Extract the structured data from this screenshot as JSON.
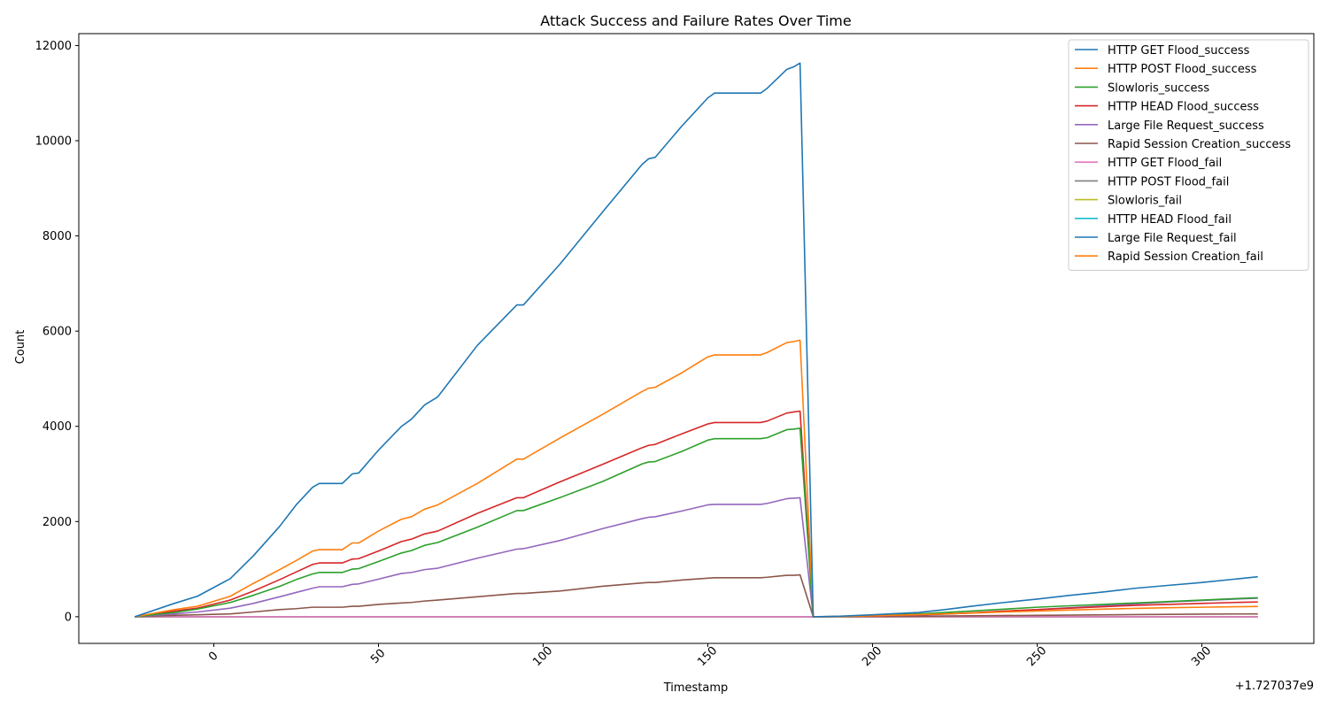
{
  "chart_data": {
    "type": "line",
    "title": "Attack Success and Failure Rates Over Time",
    "xlabel": "Timestamp",
    "ylabel": "Count",
    "x_offset_label": "+1.727037e9",
    "xlim": [
      -41,
      334
    ],
    "ylim": [
      -560,
      12250
    ],
    "xticks": [
      0,
      50,
      100,
      150,
      200,
      250,
      300
    ],
    "yticks": [
      0,
      2000,
      4000,
      6000,
      8000,
      10000,
      12000
    ],
    "legend_position": "top-right",
    "grid": false,
    "series": [
      {
        "name": "HTTP GET Flood_success",
        "color": "#1f77b4",
        "points": [
          [
            -24,
            0
          ],
          [
            -12,
            280
          ],
          [
            -5,
            430
          ],
          [
            5,
            800
          ],
          [
            12,
            1280
          ],
          [
            20,
            1900
          ],
          [
            25,
            2350
          ],
          [
            30,
            2720
          ],
          [
            32,
            2800
          ],
          [
            39,
            2800
          ],
          [
            42,
            3000
          ],
          [
            44,
            3020
          ],
          [
            50,
            3500
          ],
          [
            57,
            4000
          ],
          [
            60,
            4150
          ],
          [
            64,
            4450
          ],
          [
            68,
            4620
          ],
          [
            80,
            5700
          ],
          [
            92,
            6550
          ],
          [
            94,
            6550
          ],
          [
            105,
            7400
          ],
          [
            118,
            8500
          ],
          [
            130,
            9500
          ],
          [
            132,
            9620
          ],
          [
            134,
            9650
          ],
          [
            142,
            10300
          ],
          [
            150,
            10900
          ],
          [
            152,
            11000
          ],
          [
            166,
            11000
          ],
          [
            168,
            11100
          ],
          [
            174,
            11500
          ],
          [
            176,
            11550
          ],
          [
            178,
            11630
          ],
          [
            182,
            0
          ],
          [
            190,
            10
          ],
          [
            200,
            40
          ],
          [
            214,
            90
          ],
          [
            222,
            150
          ],
          [
            230,
            220
          ],
          [
            240,
            300
          ],
          [
            250,
            370
          ],
          [
            260,
            450
          ],
          [
            270,
            520
          ],
          [
            280,
            600
          ],
          [
            290,
            660
          ],
          [
            300,
            720
          ],
          [
            310,
            790
          ],
          [
            317,
            840
          ]
        ]
      },
      {
        "name": "HTTP POST Flood_success",
        "color": "#ff7f0e",
        "points": [
          [
            -24,
            0
          ],
          [
            -12,
            150
          ],
          [
            -5,
            220
          ],
          [
            5,
            430
          ],
          [
            12,
            700
          ],
          [
            20,
            990
          ],
          [
            25,
            1180
          ],
          [
            30,
            1380
          ],
          [
            32,
            1410
          ],
          [
            39,
            1410
          ],
          [
            42,
            1550
          ],
          [
            44,
            1550
          ],
          [
            50,
            1800
          ],
          [
            57,
            2050
          ],
          [
            60,
            2100
          ],
          [
            64,
            2260
          ],
          [
            68,
            2350
          ],
          [
            80,
            2800
          ],
          [
            92,
            3310
          ],
          [
            94,
            3310
          ],
          [
            105,
            3750
          ],
          [
            118,
            4250
          ],
          [
            130,
            4730
          ],
          [
            132,
            4800
          ],
          [
            134,
            4820
          ],
          [
            142,
            5120
          ],
          [
            150,
            5460
          ],
          [
            152,
            5500
          ],
          [
            166,
            5500
          ],
          [
            168,
            5550
          ],
          [
            174,
            5760
          ],
          [
            176,
            5780
          ],
          [
            178,
            5810
          ],
          [
            182,
            0
          ],
          [
            190,
            5
          ],
          [
            200,
            20
          ],
          [
            214,
            45
          ],
          [
            222,
            60
          ],
          [
            230,
            75
          ],
          [
            240,
            100
          ],
          [
            250,
            120
          ],
          [
            260,
            140
          ],
          [
            270,
            160
          ],
          [
            280,
            175
          ],
          [
            290,
            190
          ],
          [
            300,
            200
          ],
          [
            310,
            210
          ],
          [
            317,
            215
          ]
        ]
      },
      {
        "name": "Slowloris_success",
        "color": "#2ca02c",
        "points": [
          [
            -24,
            0
          ],
          [
            -12,
            90
          ],
          [
            -5,
            160
          ],
          [
            5,
            300
          ],
          [
            12,
            450
          ],
          [
            20,
            640
          ],
          [
            25,
            780
          ],
          [
            30,
            900
          ],
          [
            32,
            930
          ],
          [
            39,
            930
          ],
          [
            42,
            1000
          ],
          [
            44,
            1010
          ],
          [
            50,
            1160
          ],
          [
            57,
            1340
          ],
          [
            60,
            1390
          ],
          [
            64,
            1500
          ],
          [
            68,
            1560
          ],
          [
            80,
            1880
          ],
          [
            92,
            2230
          ],
          [
            94,
            2230
          ],
          [
            105,
            2500
          ],
          [
            118,
            2840
          ],
          [
            130,
            3210
          ],
          [
            132,
            3250
          ],
          [
            134,
            3260
          ],
          [
            142,
            3470
          ],
          [
            150,
            3710
          ],
          [
            152,
            3740
          ],
          [
            166,
            3740
          ],
          [
            168,
            3760
          ],
          [
            174,
            3930
          ],
          [
            176,
            3940
          ],
          [
            178,
            3960
          ],
          [
            182,
            0
          ],
          [
            190,
            5
          ],
          [
            200,
            25
          ],
          [
            214,
            60
          ],
          [
            222,
            90
          ],
          [
            230,
            120
          ],
          [
            240,
            160
          ],
          [
            250,
            200
          ],
          [
            260,
            230
          ],
          [
            270,
            260
          ],
          [
            280,
            290
          ],
          [
            290,
            320
          ],
          [
            300,
            350
          ],
          [
            310,
            380
          ],
          [
            317,
            400
          ]
        ]
      },
      {
        "name": "HTTP HEAD Flood_success",
        "color": "#d62728",
        "points": [
          [
            -24,
            0
          ],
          [
            -12,
            120
          ],
          [
            -5,
            180
          ],
          [
            5,
            350
          ],
          [
            12,
            540
          ],
          [
            20,
            780
          ],
          [
            25,
            940
          ],
          [
            30,
            1100
          ],
          [
            32,
            1130
          ],
          [
            39,
            1130
          ],
          [
            42,
            1210
          ],
          [
            44,
            1220
          ],
          [
            50,
            1380
          ],
          [
            57,
            1580
          ],
          [
            60,
            1630
          ],
          [
            64,
            1740
          ],
          [
            68,
            1800
          ],
          [
            80,
            2170
          ],
          [
            92,
            2500
          ],
          [
            94,
            2500
          ],
          [
            105,
            2830
          ],
          [
            118,
            3200
          ],
          [
            130,
            3550
          ],
          [
            132,
            3600
          ],
          [
            134,
            3620
          ],
          [
            142,
            3840
          ],
          [
            150,
            4050
          ],
          [
            152,
            4080
          ],
          [
            166,
            4080
          ],
          [
            168,
            4110
          ],
          [
            174,
            4280
          ],
          [
            176,
            4300
          ],
          [
            178,
            4320
          ],
          [
            182,
            0
          ],
          [
            190,
            3
          ],
          [
            200,
            15
          ],
          [
            214,
            40
          ],
          [
            222,
            60
          ],
          [
            230,
            80
          ],
          [
            240,
            120
          ],
          [
            250,
            150
          ],
          [
            260,
            180
          ],
          [
            270,
            210
          ],
          [
            280,
            240
          ],
          [
            290,
            260
          ],
          [
            300,
            280
          ],
          [
            310,
            300
          ],
          [
            317,
            310
          ]
        ]
      },
      {
        "name": "Large File Request_success",
        "color": "#9467bd",
        "points": [
          [
            -24,
            0
          ],
          [
            -12,
            60
          ],
          [
            -5,
            100
          ],
          [
            5,
            180
          ],
          [
            12,
            280
          ],
          [
            20,
            420
          ],
          [
            25,
            510
          ],
          [
            30,
            600
          ],
          [
            32,
            630
          ],
          [
            39,
            630
          ],
          [
            42,
            680
          ],
          [
            44,
            690
          ],
          [
            50,
            790
          ],
          [
            57,
            910
          ],
          [
            60,
            930
          ],
          [
            64,
            990
          ],
          [
            68,
            1020
          ],
          [
            80,
            1230
          ],
          [
            92,
            1420
          ],
          [
            94,
            1430
          ],
          [
            105,
            1600
          ],
          [
            118,
            1850
          ],
          [
            130,
            2060
          ],
          [
            132,
            2090
          ],
          [
            134,
            2100
          ],
          [
            142,
            2220
          ],
          [
            150,
            2350
          ],
          [
            152,
            2360
          ],
          [
            166,
            2360
          ],
          [
            168,
            2380
          ],
          [
            174,
            2480
          ],
          [
            176,
            2490
          ],
          [
            178,
            2500
          ],
          [
            182,
            0
          ],
          [
            190,
            3
          ],
          [
            200,
            15
          ],
          [
            214,
            35
          ],
          [
            222,
            55
          ],
          [
            230,
            80
          ],
          [
            240,
            110
          ],
          [
            250,
            150
          ],
          [
            260,
            190
          ],
          [
            270,
            230
          ],
          [
            280,
            270
          ],
          [
            290,
            310
          ],
          [
            300,
            340
          ],
          [
            310,
            370
          ],
          [
            317,
            390
          ]
        ]
      },
      {
        "name": "Rapid Session Creation_success",
        "color": "#8c564b",
        "points": [
          [
            -24,
            0
          ],
          [
            -12,
            30
          ],
          [
            -5,
            40
          ],
          [
            5,
            60
          ],
          [
            12,
            100
          ],
          [
            20,
            150
          ],
          [
            25,
            170
          ],
          [
            30,
            200
          ],
          [
            32,
            200
          ],
          [
            39,
            200
          ],
          [
            42,
            220
          ],
          [
            44,
            220
          ],
          [
            50,
            260
          ],
          [
            57,
            290
          ],
          [
            60,
            300
          ],
          [
            64,
            330
          ],
          [
            68,
            350
          ],
          [
            80,
            420
          ],
          [
            92,
            490
          ],
          [
            94,
            490
          ],
          [
            105,
            540
          ],
          [
            118,
            640
          ],
          [
            130,
            710
          ],
          [
            132,
            720
          ],
          [
            134,
            720
          ],
          [
            142,
            770
          ],
          [
            150,
            810
          ],
          [
            152,
            820
          ],
          [
            166,
            820
          ],
          [
            168,
            830
          ],
          [
            174,
            870
          ],
          [
            176,
            870
          ],
          [
            178,
            880
          ],
          [
            182,
            0
          ],
          [
            200,
            5
          ],
          [
            222,
            15
          ],
          [
            250,
            30
          ],
          [
            280,
            45
          ],
          [
            300,
            55
          ],
          [
            317,
            60
          ]
        ]
      },
      {
        "name": "HTTP GET Flood_fail",
        "color": "#e377c2",
        "points": [
          [
            -24,
            0
          ],
          [
            182,
            0
          ],
          [
            317,
            0
          ]
        ]
      },
      {
        "name": "HTTP POST Flood_fail",
        "color": "#7f7f7f",
        "points": [
          [
            -24,
            0
          ],
          [
            182,
            0
          ],
          [
            317,
            0
          ]
        ]
      },
      {
        "name": "Slowloris_fail",
        "color": "#bcbd22",
        "points": [
          [
            -24,
            0
          ],
          [
            182,
            0
          ],
          [
            317,
            0
          ]
        ]
      },
      {
        "name": "HTTP HEAD Flood_fail",
        "color": "#17becf",
        "points": [
          [
            -24,
            0
          ],
          [
            182,
            0
          ],
          [
            317,
            0
          ]
        ]
      },
      {
        "name": "Large File Request_fail",
        "color": "#1f77b4",
        "points": [
          [
            -24,
            0
          ],
          [
            182,
            0
          ],
          [
            317,
            0
          ]
        ]
      },
      {
        "name": "Rapid Session Creation_fail",
        "color": "#ff7f0e",
        "points": [
          [
            -24,
            0
          ],
          [
            182,
            0
          ],
          [
            317,
            0
          ]
        ]
      }
    ]
  }
}
